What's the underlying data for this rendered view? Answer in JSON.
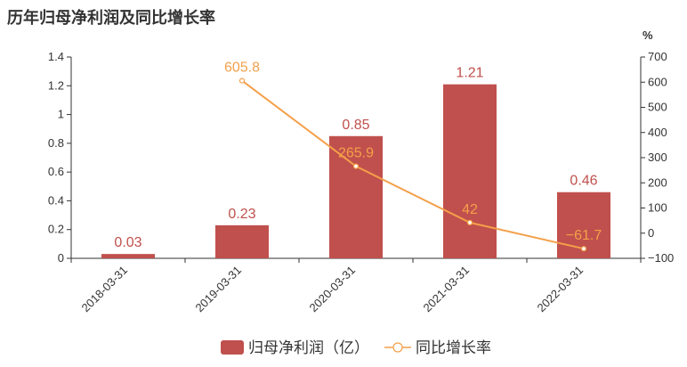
{
  "title": "历年归母净利润及同比增长率",
  "chart_data": {
    "type": "bar",
    "categories": [
      "2018-03-31",
      "2019-03-31",
      "2020-03-31",
      "2021-03-31",
      "2022-03-31"
    ],
    "series": [
      {
        "name": "归母净利润（亿）",
        "type": "bar",
        "axis": "left",
        "values": [
          0.03,
          0.23,
          0.85,
          1.21,
          0.46
        ],
        "labels": [
          "0.03",
          "0.23",
          "0.85",
          "1.21",
          "0.46"
        ],
        "color": "#c0504d"
      },
      {
        "name": "同比增长率",
        "type": "line",
        "axis": "right",
        "values": [
          null,
          605.8,
          265.9,
          42,
          -61.7
        ],
        "labels": [
          "",
          "605.8",
          "265.9",
          "42",
          "−61.7"
        ],
        "color": "#f4a04a"
      }
    ],
    "y_left": {
      "ylim": [
        0,
        1.4
      ],
      "ticks": [
        "0",
        "0.2",
        "0.4",
        "0.6",
        "0.8",
        "1",
        "1.2",
        "1.4"
      ]
    },
    "y_right": {
      "ylim": [
        -100,
        700
      ],
      "ticks": [
        "−100",
        "0",
        "100",
        "200",
        "300",
        "400",
        "500",
        "600",
        "700"
      ],
      "unit": "%"
    },
    "legend": {
      "position": "bottom"
    }
  }
}
